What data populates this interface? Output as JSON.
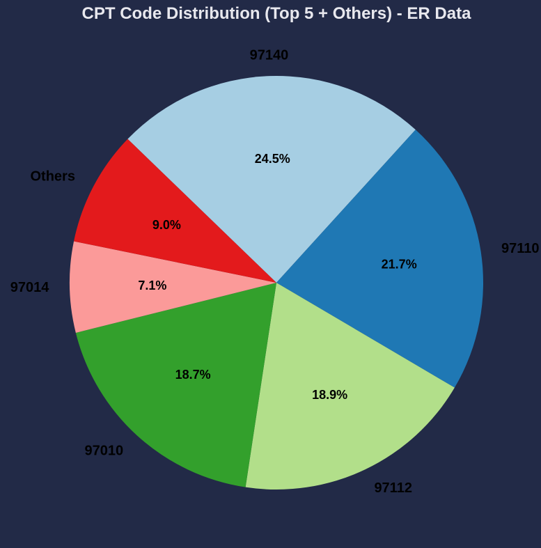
{
  "chart_data": {
    "type": "pie",
    "title": "CPT Code Distribution (Top 5 + Others) - ER Data",
    "start_angle_deg": 136,
    "direction": "clockwise",
    "slices": [
      {
        "label": "97140",
        "value": 24.5,
        "pct_label": "24.5%",
        "color": "#a6cee3"
      },
      {
        "label": "97110",
        "value": 21.7,
        "pct_label": "21.7%",
        "color": "#1f78b4"
      },
      {
        "label": "97112",
        "value": 18.9,
        "pct_label": "18.9%",
        "color": "#b2df8a"
      },
      {
        "label": "97010",
        "value": 18.7,
        "pct_label": "18.7%",
        "color": "#33a02c"
      },
      {
        "label": "97014",
        "value": 7.1,
        "pct_label": "7.1%",
        "color": "#fb9a99"
      },
      {
        "label": "Others",
        "value": 9.0,
        "pct_label": "9.0%",
        "color": "#e31a1c"
      }
    ]
  }
}
